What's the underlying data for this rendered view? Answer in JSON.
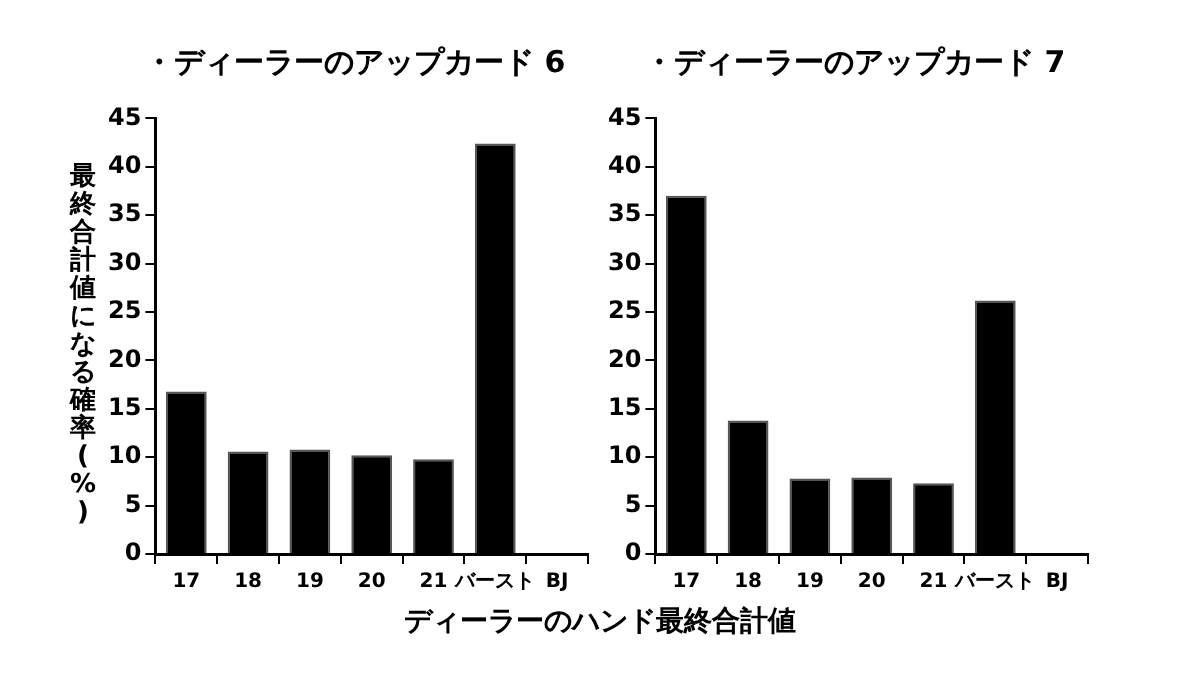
{
  "chart_data": [
    {
      "type": "bar",
      "title": "・ディーラーのアップカード 6",
      "ylabel": "最終合計値になる確率(%)",
      "xlabel": "ディーラーのハンド最終合計値",
      "categories": [
        "17",
        "18",
        "19",
        "20",
        "21",
        "バースト",
        "BJ"
      ],
      "values": [
        16.8,
        10.6,
        10.8,
        10.2,
        9.8,
        42.4,
        0
      ],
      "color": "#000000",
      "ylim": [
        0,
        45
      ],
      "yticks": [
        0,
        5,
        10,
        15,
        20,
        25,
        30,
        35,
        40,
        45
      ],
      "grid": false,
      "legend": false
    },
    {
      "type": "bar",
      "title": "・ディーラーのアップカード 7",
      "categories": [
        "17",
        "18",
        "19",
        "20",
        "21",
        "バースト",
        "BJ"
      ],
      "values": [
        37.0,
        13.8,
        7.8,
        7.9,
        7.3,
        26.2,
        0
      ],
      "color": "#000000",
      "ylim": [
        0,
        45
      ],
      "yticks": [
        0,
        5,
        10,
        15,
        20,
        25,
        30,
        35,
        40,
        45
      ],
      "grid": false,
      "legend": false
    }
  ]
}
